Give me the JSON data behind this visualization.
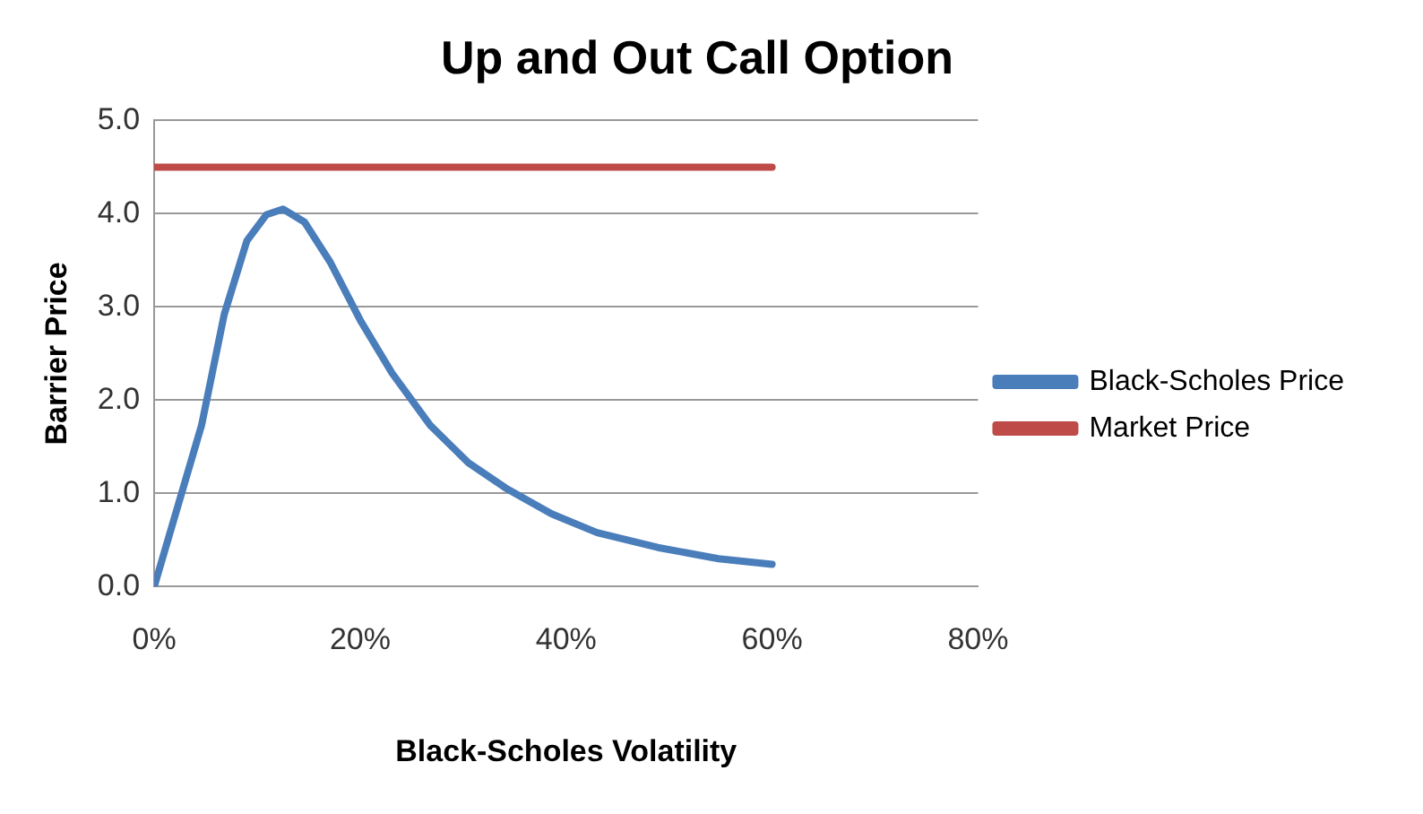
{
  "chart_data": {
    "type": "line",
    "title": "Up and Out Call Option",
    "xlabel": "Black-Scholes Volatility",
    "ylabel": "Barrier Price",
    "series": [
      {
        "name": "Black-Scholes Price",
        "color": "#4a7ebb",
        "x": [
          0,
          4.6,
          6.8,
          9.0,
          10.9,
          12.5,
          14.6,
          17.1,
          20.1,
          23.1,
          26.8,
          30.5,
          34.1,
          38.6,
          43.0,
          48.9,
          54.8,
          60
        ],
        "values": [
          0,
          1.73,
          2.92,
          3.71,
          3.99,
          4.05,
          3.91,
          3.48,
          2.84,
          2.29,
          1.73,
          1.33,
          1.06,
          0.78,
          0.58,
          0.42,
          0.3,
          0.24
        ]
      },
      {
        "name": "Market Price",
        "color": "#be4b48",
        "x": [
          0,
          60
        ],
        "values": [
          4.5,
          4.5
        ]
      }
    ],
    "xlim": [
      0,
      80
    ],
    "xticks": [
      {
        "value": 0,
        "label": "0%"
      },
      {
        "value": 20,
        "label": "20%"
      },
      {
        "value": 40,
        "label": "40%"
      },
      {
        "value": 60,
        "label": "60%"
      },
      {
        "value": 80,
        "label": "80%"
      }
    ],
    "ylim": [
      0,
      5
    ],
    "yticks": [
      {
        "value": 0,
        "label": "0.0"
      },
      {
        "value": 1,
        "label": "1.0"
      },
      {
        "value": 2,
        "label": "2.0"
      },
      {
        "value": 3,
        "label": "3.0"
      },
      {
        "value": 4,
        "label": "4.0"
      },
      {
        "value": 5,
        "label": "5.0"
      }
    ],
    "grid": "y",
    "legend": "right",
    "marker": "none",
    "line_style": "solid"
  }
}
